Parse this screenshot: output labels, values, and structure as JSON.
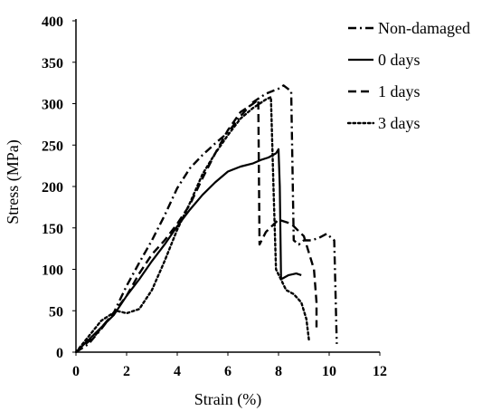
{
  "chart_data": {
    "type": "line",
    "xlabel": "Strain (%)",
    "ylabel": "Stress (MPa)",
    "xlim": [
      0,
      12
    ],
    "ylim": [
      0,
      400
    ],
    "x_ticks": [
      0,
      2,
      4,
      6,
      8,
      10,
      12
    ],
    "y_ticks": [
      0,
      50,
      100,
      150,
      200,
      250,
      300,
      350,
      400
    ],
    "x_tick_labels": [
      "0",
      "2",
      "4",
      "6",
      "8",
      "10",
      "12"
    ],
    "y_tick_labels": [
      "0",
      "50",
      "100",
      "150",
      "200",
      "250",
      "300",
      "350",
      "400"
    ],
    "grid": false,
    "legend_position": "top-right",
    "series": [
      {
        "name": "Non-damaged",
        "style": "dash-dot",
        "color": "#000000",
        "points": [
          [
            0,
            0
          ],
          [
            0.5,
            10
          ],
          [
            1.0,
            28
          ],
          [
            1.5,
            48
          ],
          [
            2.0,
            80
          ],
          [
            2.5,
            108
          ],
          [
            3.0,
            135
          ],
          [
            3.5,
            165
          ],
          [
            4.0,
            198
          ],
          [
            4.5,
            222
          ],
          [
            5.0,
            238
          ],
          [
            5.5,
            252
          ],
          [
            6.0,
            265
          ],
          [
            6.5,
            285
          ],
          [
            7.0,
            302
          ],
          [
            7.5,
            312
          ],
          [
            8.0,
            318
          ],
          [
            8.2,
            322
          ],
          [
            8.5,
            315
          ],
          [
            8.6,
            135
          ],
          [
            8.8,
            130
          ],
          [
            9.0,
            135
          ],
          [
            9.3,
            135
          ],
          [
            9.6,
            138
          ],
          [
            9.9,
            143
          ],
          [
            10.2,
            135
          ],
          [
            10.3,
            10
          ]
        ]
      },
      {
        "name": "0 days",
        "style": "solid",
        "color": "#000000",
        "points": [
          [
            0,
            0
          ],
          [
            1.0,
            30
          ],
          [
            1.5,
            45
          ],
          [
            2.0,
            68
          ],
          [
            2.5,
            88
          ],
          [
            3.0,
            110
          ],
          [
            3.5,
            130
          ],
          [
            4.0,
            152
          ],
          [
            4.5,
            172
          ],
          [
            5.0,
            190
          ],
          [
            5.5,
            205
          ],
          [
            6.0,
            218
          ],
          [
            6.5,
            224
          ],
          [
            7.0,
            228
          ],
          [
            7.3,
            232
          ],
          [
            7.6,
            235
          ],
          [
            7.9,
            240
          ],
          [
            8.0,
            245
          ],
          [
            8.05,
            200
          ],
          [
            8.1,
            88
          ],
          [
            8.4,
            93
          ],
          [
            8.7,
            95
          ],
          [
            8.9,
            93
          ]
        ]
      },
      {
        "name": "1 days",
        "style": "dashed",
        "color": "#000000",
        "points": [
          [
            0,
            0
          ],
          [
            0.7,
            18
          ],
          [
            1.5,
            48
          ],
          [
            2.0,
            68
          ],
          [
            2.5,
            95
          ],
          [
            3.0,
            118
          ],
          [
            3.5,
            135
          ],
          [
            4.0,
            155
          ],
          [
            4.5,
            178
          ],
          [
            5.0,
            210
          ],
          [
            5.5,
            240
          ],
          [
            6.0,
            268
          ],
          [
            6.5,
            290
          ],
          [
            7.0,
            300
          ],
          [
            7.2,
            305
          ],
          [
            7.25,
            130
          ],
          [
            7.5,
            145
          ],
          [
            8.0,
            160
          ],
          [
            8.5,
            155
          ],
          [
            9.0,
            140
          ],
          [
            9.2,
            120
          ],
          [
            9.4,
            100
          ],
          [
            9.5,
            60
          ],
          [
            9.5,
            30
          ]
        ]
      },
      {
        "name": "3 days",
        "style": "dotted",
        "color": "#000000",
        "points": [
          [
            0,
            0
          ],
          [
            1.0,
            38
          ],
          [
            1.6,
            50
          ],
          [
            2.0,
            47
          ],
          [
            2.5,
            52
          ],
          [
            3.0,
            75
          ],
          [
            3.5,
            110
          ],
          [
            4.0,
            148
          ],
          [
            4.5,
            180
          ],
          [
            5.0,
            215
          ],
          [
            5.5,
            240
          ],
          [
            6.0,
            262
          ],
          [
            6.5,
            282
          ],
          [
            7.0,
            295
          ],
          [
            7.5,
            305
          ],
          [
            7.7,
            308
          ],
          [
            7.8,
            200
          ],
          [
            7.9,
            100
          ],
          [
            8.3,
            75
          ],
          [
            8.6,
            70
          ],
          [
            8.9,
            60
          ],
          [
            9.1,
            40
          ],
          [
            9.2,
            15
          ]
        ]
      }
    ]
  }
}
